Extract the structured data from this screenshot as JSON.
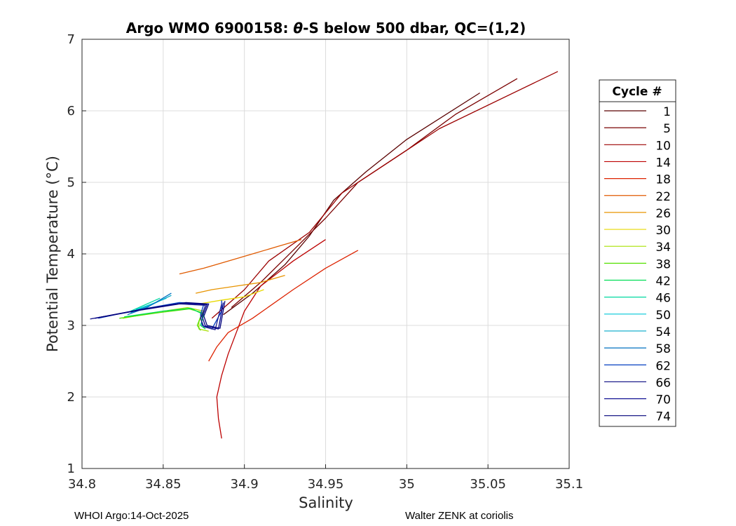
{
  "chart_data": {
    "type": "line",
    "title_prefix": "Argo WMO 6900158: ",
    "title_theta": "θ",
    "title_suffix": "-S below 500 dbar,  QC=(1,2)",
    "xlabel": "Salinity",
    "ylabel": "Potential Temperature (°C)",
    "xlim": [
      34.8,
      35.1
    ],
    "ylim": [
      1,
      7
    ],
    "xticks": [
      "34.8",
      "34.85",
      "34.9",
      "34.95",
      "35",
      "35.05",
      "35.1"
    ],
    "yticks": [
      "1",
      "2",
      "3",
      "4",
      "5",
      "6",
      "7"
    ],
    "grid": true,
    "legend_position": "right-outside",
    "legend_title": "Cycle #",
    "series": [
      {
        "name": "1",
        "color": "#5a0000",
        "points": [
          [
            34.887,
            3.15
          ],
          [
            34.905,
            3.45
          ],
          [
            34.925,
            3.85
          ],
          [
            34.94,
            4.25
          ],
          [
            34.955,
            4.75
          ],
          [
            34.975,
            5.15
          ],
          [
            35.0,
            5.6
          ],
          [
            35.045,
            6.25
          ]
        ]
      },
      {
        "name": "5",
        "color": "#7a0000",
        "points": [
          [
            34.892,
            3.25
          ],
          [
            34.91,
            3.6
          ],
          [
            34.93,
            4.05
          ],
          [
            34.95,
            4.5
          ],
          [
            34.97,
            5.0
          ],
          [
            35.0,
            5.45
          ],
          [
            35.03,
            5.95
          ],
          [
            35.068,
            6.45
          ]
        ]
      },
      {
        "name": "10",
        "color": "#9b0000",
        "points": [
          [
            34.88,
            3.1
          ],
          [
            34.9,
            3.5
          ],
          [
            34.915,
            3.9
          ],
          [
            34.94,
            4.3
          ],
          [
            34.96,
            4.85
          ],
          [
            34.99,
            5.3
          ],
          [
            35.02,
            5.75
          ],
          [
            35.093,
            6.55
          ]
        ]
      },
      {
        "name": "14",
        "color": "#bc0000",
        "points": [
          [
            34.886,
            1.42
          ],
          [
            34.884,
            1.7
          ],
          [
            34.883,
            2.0
          ],
          [
            34.886,
            2.3
          ],
          [
            34.89,
            2.6
          ],
          [
            34.895,
            2.9
          ],
          [
            34.9,
            3.2
          ],
          [
            34.91,
            3.55
          ],
          [
            34.93,
            3.9
          ],
          [
            34.95,
            4.2
          ]
        ]
      },
      {
        "name": "18",
        "color": "#dd2200",
        "points": [
          [
            34.878,
            2.5
          ],
          [
            34.883,
            2.7
          ],
          [
            34.89,
            2.9
          ],
          [
            34.905,
            3.1
          ],
          [
            34.93,
            3.5
          ],
          [
            34.95,
            3.8
          ],
          [
            34.97,
            4.05
          ]
        ]
      },
      {
        "name": "22",
        "color": "#e05a00",
        "points": [
          [
            34.86,
            3.72
          ],
          [
            34.875,
            3.8
          ],
          [
            34.89,
            3.9
          ],
          [
            34.905,
            4.0
          ],
          [
            34.92,
            4.1
          ],
          [
            34.935,
            4.2
          ]
        ]
      },
      {
        "name": "26",
        "color": "#e89400",
        "points": [
          [
            34.87,
            3.45
          ],
          [
            34.88,
            3.5
          ],
          [
            34.895,
            3.55
          ],
          [
            34.91,
            3.6
          ],
          [
            34.925,
            3.7
          ]
        ]
      },
      {
        "name": "30",
        "color": "#e8d800",
        "points": [
          [
            34.872,
            3.3
          ],
          [
            34.885,
            3.35
          ],
          [
            34.9,
            3.4
          ],
          [
            34.912,
            3.5
          ]
        ]
      },
      {
        "name": "34",
        "color": "#a8e000",
        "points": [
          [
            34.825,
            3.1
          ],
          [
            34.85,
            3.2
          ],
          [
            34.865,
            3.25
          ],
          [
            34.875,
            3.2
          ],
          [
            34.872,
            3.05
          ],
          [
            34.872,
            2.95
          ],
          [
            34.878,
            2.92
          ]
        ]
      },
      {
        "name": "38",
        "color": "#55e000",
        "points": [
          [
            34.823,
            3.1
          ],
          [
            34.848,
            3.18
          ],
          [
            34.866,
            3.23
          ],
          [
            34.874,
            3.18
          ],
          [
            34.871,
            3.0
          ],
          [
            34.873,
            2.93
          ]
        ]
      },
      {
        "name": "42",
        "color": "#00dd55",
        "points": [
          [
            34.826,
            3.12
          ],
          [
            34.85,
            3.2
          ],
          [
            34.867,
            3.24
          ],
          [
            34.875,
            3.15
          ],
          [
            34.873,
            3.0
          ],
          [
            34.876,
            2.95
          ]
        ]
      },
      {
        "name": "46",
        "color": "#00d8a0",
        "points": [
          [
            34.83,
            3.2
          ],
          [
            34.84,
            3.3
          ],
          [
            34.848,
            3.38
          ]
        ]
      },
      {
        "name": "50",
        "color": "#00c8d8",
        "points": [
          [
            34.833,
            3.22
          ],
          [
            34.843,
            3.3
          ],
          [
            34.852,
            3.38
          ]
        ]
      },
      {
        "name": "54",
        "color": "#00a8c8",
        "points": [
          [
            34.83,
            3.18
          ],
          [
            34.842,
            3.28
          ],
          [
            34.855,
            3.42
          ]
        ]
      },
      {
        "name": "58",
        "color": "#0070c0",
        "points": [
          [
            34.828,
            3.15
          ],
          [
            34.84,
            3.25
          ],
          [
            34.855,
            3.45
          ]
        ]
      },
      {
        "name": "62",
        "color": "#003cc0",
        "points": [
          [
            34.81,
            3.1
          ],
          [
            34.835,
            3.22
          ],
          [
            34.86,
            3.32
          ],
          [
            34.875,
            3.3
          ],
          [
            34.873,
            3.15
          ],
          [
            34.874,
            3.0
          ],
          [
            34.88,
            2.95
          ],
          [
            34.886,
            3.2
          ],
          [
            34.886,
            3.35
          ]
        ]
      },
      {
        "name": "66",
        "color": "#1e1e8c",
        "points": [
          [
            34.805,
            3.09
          ],
          [
            34.835,
            3.21
          ],
          [
            34.86,
            3.3
          ],
          [
            34.876,
            3.28
          ],
          [
            34.873,
            3.1
          ],
          [
            34.875,
            2.98
          ],
          [
            34.882,
            2.94
          ],
          [
            34.886,
            3.3
          ]
        ]
      },
      {
        "name": "70",
        "color": "#00008c",
        "points": [
          [
            34.808,
            3.1
          ],
          [
            34.836,
            3.22
          ],
          [
            34.862,
            3.31
          ],
          [
            34.877,
            3.29
          ],
          [
            34.874,
            3.12
          ],
          [
            34.876,
            2.99
          ],
          [
            34.884,
            2.95
          ],
          [
            34.887,
            3.32
          ]
        ]
      },
      {
        "name": "74",
        "color": "#00007a",
        "points": [
          [
            34.81,
            3.11
          ],
          [
            34.838,
            3.23
          ],
          [
            34.864,
            3.32
          ],
          [
            34.878,
            3.3
          ],
          [
            34.875,
            3.13
          ],
          [
            34.877,
            3.0
          ],
          [
            34.885,
            2.96
          ],
          [
            34.888,
            3.34
          ]
        ]
      }
    ]
  },
  "footer_left": "WHOI Argo:14-Oct-2025",
  "footer_right": "Walter ZENK at coriolis"
}
